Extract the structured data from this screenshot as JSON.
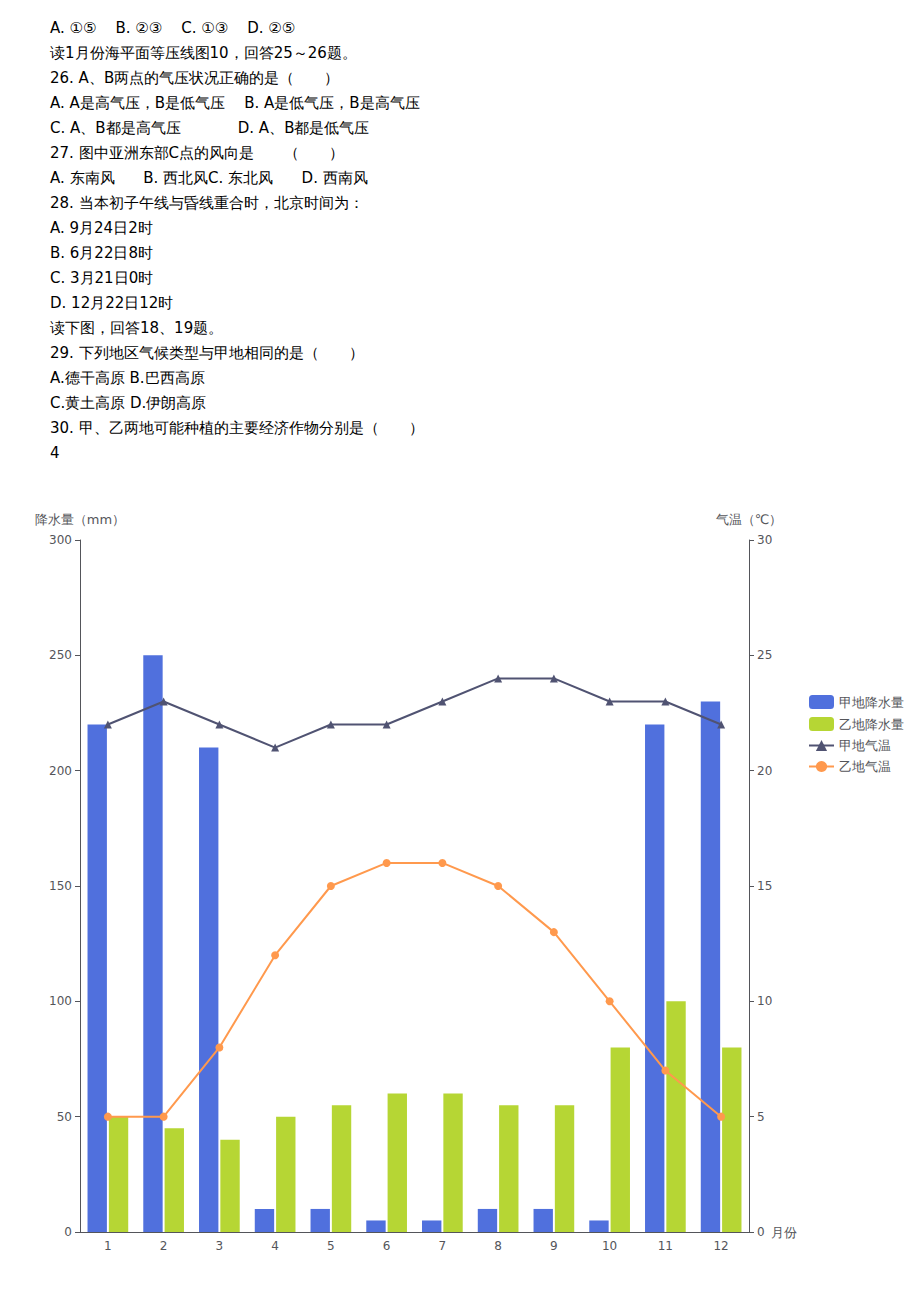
{
  "chart_data": {
    "type": "bar",
    "annotations": [
      "A. ①⑤    B. ②③    C. ①③    D. ②⑤",
      "读1月份海平面等压线图10，回答25～26题。",
      "26. A、B两点的气压状况正确的是（　　）",
      "A. A是高气压，B是低气压    B. A是低气压，B是高气压",
      "C. A、B都是高气压            D. A、B都是低气压",
      "27. 图中亚洲东部C点的风向是　　（　　）",
      "A. 东南风      B. 西北风C. 东北风      D. 西南风",
      "28. 当本初子午线与昏线重合时，北京时间为：",
      "A. 9月24日2时",
      "B. 6月22日8时",
      "C. 3月21日0时",
      "D. 12月22日12时",
      "读下图，回答18、19题。",
      "29. 下列地区气候类型与甲地相同的是（　　）",
      "A.德干高原 B.巴西高原",
      "C.黄土高原 D.伊朗高原",
      "30. 甲、乙两地可能种植的主要经济作物分别是（　　）",
      "4"
    ],
    "xlabel": "月份",
    "ylabel": "降水量（mm）",
    "y2label": "气温（℃）",
    "categories": [
      "1",
      "2",
      "3",
      "4",
      "5",
      "6",
      "7",
      "8",
      "9",
      "10",
      "11",
      "12"
    ],
    "ylim": [
      0,
      300
    ],
    "yticks": [
      0,
      50,
      100,
      150,
      200,
      250,
      300
    ],
    "y2lim": [
      0,
      30
    ],
    "y2ticks": [
      0,
      5,
      10,
      15,
      20,
      25,
      30
    ],
    "grid": false,
    "legend": "right",
    "series": [
      {
        "name": "甲地降水量",
        "type": "bar",
        "values": [
          220,
          250,
          210,
          10,
          10,
          5,
          5,
          10,
          10,
          5,
          220,
          230
        ]
      },
      {
        "name": "乙地降水量",
        "type": "bar",
        "values": [
          50,
          45,
          40,
          50,
          55,
          60,
          60,
          55,
          55,
          80,
          100,
          80
        ]
      },
      {
        "name": "甲地气温",
        "type": "line",
        "axis": "y2",
        "marker": "triangle",
        "values": [
          22,
          23,
          22,
          21,
          22,
          22,
          23,
          24,
          24,
          23,
          23,
          22
        ]
      },
      {
        "name": "乙地气温",
        "type": "line",
        "axis": "y2",
        "marker": "circle",
        "values": [
          5,
          5,
          8,
          12,
          15,
          16,
          16,
          15,
          13,
          10,
          7,
          5
        ]
      }
    ]
  }
}
